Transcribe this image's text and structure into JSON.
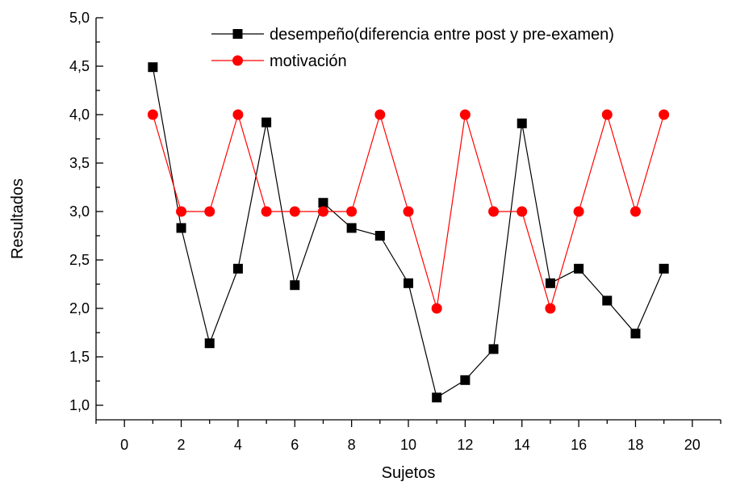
{
  "chart_data": {
    "type": "line",
    "title": "",
    "xlabel": "Sujetos",
    "ylabel": "Resultados",
    "xlim": [
      -1,
      21
    ],
    "ylim": [
      0.85,
      5.0
    ],
    "x_ticks": [
      0,
      2,
      4,
      6,
      8,
      10,
      12,
      14,
      16,
      18,
      20
    ],
    "x_tick_labels": [
      "0",
      "2",
      "4",
      "6",
      "8",
      "10",
      "12",
      "14",
      "16",
      "18",
      "20"
    ],
    "y_ticks": [
      1.0,
      1.5,
      2.0,
      2.5,
      3.0,
      3.5,
      4.0,
      4.5,
      5.0
    ],
    "y_tick_labels": [
      "1,0",
      "1,5",
      "2,0",
      "2,5",
      "3,0",
      "3,5",
      "4,0",
      "4,5",
      "5,0"
    ],
    "grid": false,
    "legend_position": "top-center",
    "x": [
      1,
      2,
      3,
      4,
      5,
      6,
      7,
      8,
      9,
      10,
      11,
      12,
      13,
      14,
      15,
      16,
      17,
      18,
      19
    ],
    "series": [
      {
        "name": "desempeño(diferencia entre post y pre-examen)",
        "color": "#000000",
        "marker": "square",
        "values": [
          4.49,
          2.83,
          1.64,
          2.41,
          3.92,
          2.24,
          3.09,
          2.83,
          2.75,
          2.26,
          1.08,
          1.26,
          1.58,
          3.91,
          2.26,
          2.41,
          2.08,
          1.74,
          2.41
        ]
      },
      {
        "name": "motivación",
        "color": "#ff0000",
        "marker": "circle",
        "values": [
          4.0,
          3.0,
          3.0,
          4.0,
          3.0,
          3.0,
          3.0,
          3.0,
          4.0,
          3.0,
          2.0,
          4.0,
          3.0,
          3.0,
          2.0,
          3.0,
          4.0,
          3.0,
          4.0
        ]
      }
    ]
  }
}
